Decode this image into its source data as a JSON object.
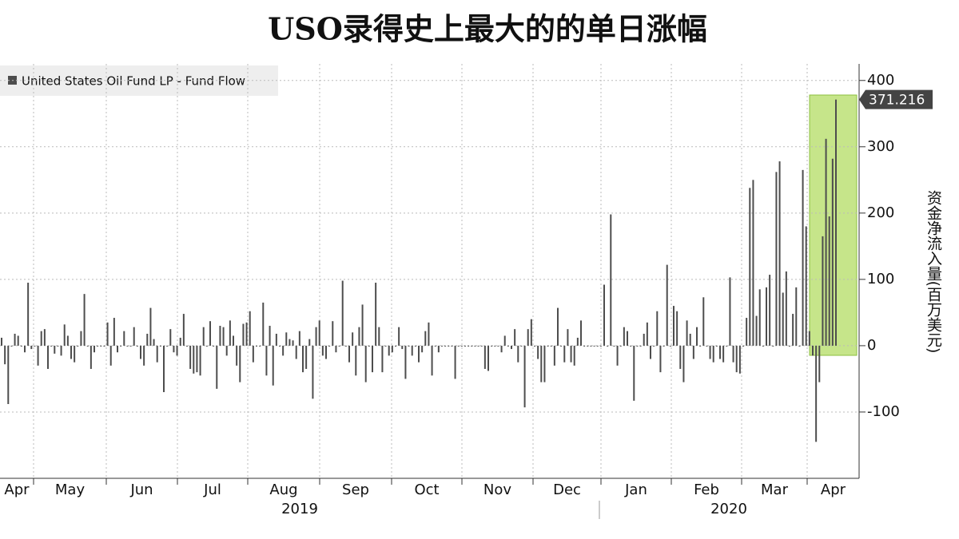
{
  "chart_data": {
    "type": "bar",
    "title": "USO录得史上最大的的单日涨幅",
    "legend": "United States Oil Fund LP - Fund Flow",
    "y_axis_label": "资金净流入量(百万美元)",
    "color": "#4d4d4d",
    "grid": true,
    "months": [
      "Apr",
      "May",
      "Jun",
      "Jul",
      "Aug",
      "Sep",
      "Oct",
      "Nov",
      "Dec",
      "Jan",
      "Feb",
      "Mar",
      "Apr"
    ],
    "years": [
      "2019",
      "2020"
    ],
    "ylim": [
      -200,
      425
    ],
    "yticks": [
      -100,
      0,
      100,
      200,
      300,
      400
    ],
    "values": [
      12,
      -28,
      -88,
      0,
      18,
      15,
      0,
      -10,
      95,
      -5,
      0,
      -30,
      22,
      25,
      -35,
      0,
      -12,
      0,
      -15,
      32,
      15,
      -20,
      -25,
      0,
      22,
      78,
      0,
      -35,
      -10,
      0,
      0,
      0,
      35,
      -30,
      42,
      -10,
      0,
      22,
      0,
      0,
      28,
      0,
      -20,
      -30,
      18,
      57,
      10,
      -25,
      0,
      -70,
      0,
      25,
      -10,
      -15,
      12,
      48,
      0,
      -35,
      -42,
      -40,
      -45,
      28,
      0,
      37,
      0,
      -65,
      30,
      28,
      -15,
      38,
      15,
      -30,
      -55,
      33,
      35,
      52,
      -25,
      0,
      0,
      65,
      -45,
      30,
      -60,
      18,
      0,
      -15,
      20,
      10,
      8,
      -20,
      22,
      -40,
      -35,
      10,
      -80,
      28,
      38,
      -15,
      -20,
      0,
      37,
      -10,
      0,
      98,
      0,
      -25,
      20,
      -45,
      28,
      62,
      -55,
      0,
      -40,
      95,
      28,
      -40,
      0,
      -15,
      -10,
      0,
      28,
      -5,
      -50,
      0,
      -15,
      0,
      -25,
      -10,
      22,
      35,
      -45,
      0,
      -10,
      0,
      0,
      0,
      0,
      -50,
      0,
      0,
      0,
      0,
      0,
      0,
      0,
      0,
      -35,
      -38,
      0,
      0,
      0,
      -10,
      15,
      0,
      -5,
      25,
      -25,
      0,
      -93,
      25,
      40,
      0,
      -20,
      -55,
      -55,
      0,
      0,
      -30,
      57,
      0,
      -25,
      25,
      -25,
      -30,
      12,
      38,
      0,
      0,
      0,
      0,
      0,
      0,
      92,
      0,
      198,
      0,
      -30,
      0,
      28,
      22,
      0,
      -83,
      0,
      0,
      18,
      35,
      -20,
      0,
      52,
      -40,
      0,
      122,
      0,
      60,
      52,
      -35,
      -55,
      38,
      18,
      -20,
      28,
      0,
      73,
      0,
      -20,
      -25,
      0,
      -20,
      -25,
      0,
      103,
      -25,
      -40,
      -42,
      0,
      42,
      238,
      250,
      45,
      85,
      0,
      88,
      107,
      0,
      262,
      278,
      80,
      112,
      0,
      48,
      88,
      0,
      265,
      180,
      22,
      -15,
      -145,
      -55,
      165,
      312,
      195,
      282,
      371.216
    ]
  }
}
